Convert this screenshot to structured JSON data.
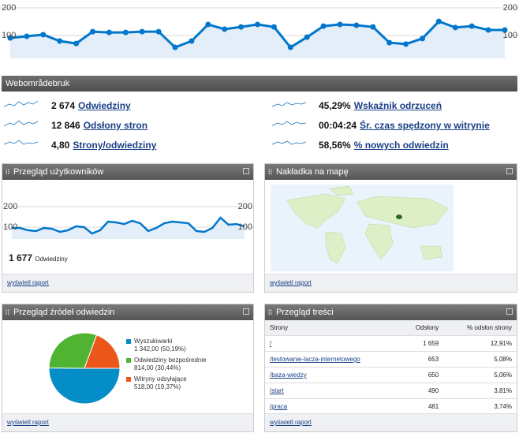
{
  "top_chart": {
    "type": "line",
    "ylim": [
      0,
      200
    ],
    "yticks": [
      100,
      200
    ],
    "values": [
      91,
      97,
      103,
      80,
      71,
      114,
      111,
      111,
      114,
      114,
      57,
      80,
      140,
      123,
      131,
      140,
      131,
      57,
      94,
      134,
      140,
      137,
      131,
      74,
      69,
      89,
      151,
      129,
      134,
      120,
      120
    ]
  },
  "section_title": "Webområdebruk",
  "metrics": [
    {
      "value": "2 674",
      "label": "Odwiedziny"
    },
    {
      "value": "12 846",
      "label": "Odsłony stron"
    },
    {
      "value": "4,80",
      "label": "Strony/odwiedziny"
    },
    {
      "value": "45,29%",
      "label": "Wskaźnik odrzuceń"
    },
    {
      "value": "00:04:24",
      "label": "Śr. czas spędzony w witrynie"
    },
    {
      "value": "58,56%",
      "label": "% nowych odwiedzin"
    }
  ],
  "visitors_panel": {
    "title": "Przegląd użytkowników",
    "chart": {
      "type": "line",
      "ylim": [
        0,
        200
      ],
      "yticks": [
        100,
        200
      ],
      "values": [
        96,
        96,
        85,
        81,
        96,
        92,
        77,
        85,
        104,
        100,
        69,
        85,
        127,
        123,
        115,
        131,
        119,
        81,
        96,
        119,
        127,
        123,
        119,
        81,
        77,
        96,
        146,
        112,
        115,
        104
      ]
    },
    "total": "1 677",
    "total_label": "Odwiedziny",
    "link": "wyświetl raport"
  },
  "map_panel": {
    "title": "Nakładka na mapę",
    "link": "wyświetl raport"
  },
  "sources_panel": {
    "title": "Przegląd źródeł odwiedzin",
    "chart": {
      "type": "pie",
      "series": [
        {
          "name": "Wyszukiwarki",
          "color": "#058dc7",
          "value": 50.19,
          "value_label": "1 342,00 (50,19%)"
        },
        {
          "name": "Odwiedziny bezpośrednie",
          "color": "#50b432",
          "value": 30.44,
          "value_label": "814,00 (30,44%)"
        },
        {
          "name": "Witryny odsyłające",
          "color": "#ed561b",
          "value": 19.37,
          "value_label": "518,00 (19,37%)"
        }
      ]
    },
    "link": "wyświetl raport"
  },
  "content_panel": {
    "title": "Przegląd treści",
    "table": {
      "header": [
        "Strony",
        "Odsłony",
        "% odsłon strony"
      ],
      "rows": [
        [
          "/",
          "1 659",
          "12,91%"
        ],
        [
          "/testowanie-lacza-internetowego",
          "653",
          "5,08%"
        ],
        [
          "/baza-wiedzy",
          "650",
          "5,06%"
        ],
        [
          "/start",
          "490",
          "3,81%"
        ],
        [
          "/praca",
          "481",
          "3,74%"
        ]
      ]
    },
    "link": "wyświetl raport"
  }
}
